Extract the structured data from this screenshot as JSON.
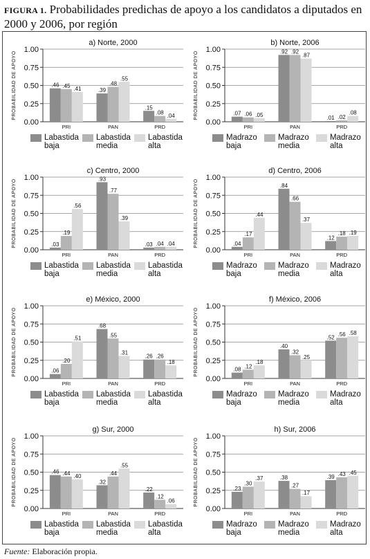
{
  "figure": {
    "label": "FIGURA 1.",
    "title": "Probabilidades predichas de apoyo a los candidatos a diputados en 2000 y 2006, por región",
    "source_label": "Fuente:",
    "source_text": " Elaboración propia."
  },
  "colors": {
    "low": "#8c8c8c",
    "mid": "#b4b4b4",
    "high": "#dadada",
    "axis": "#333333",
    "grid": "#888888"
  },
  "chart_data": [
    {
      "type": "bar",
      "title": "a) Norte, 2000",
      "ylabel": "PROBABILIDAD DE APOYO",
      "categories": [
        "PRI",
        "PAN",
        "PRD"
      ],
      "ylim": [
        0,
        1
      ],
      "yticks": [
        "0.00",
        "0.25",
        "0.50",
        "0.75",
        "1.00"
      ],
      "legend": [
        [
          "Labastida",
          "baja"
        ],
        [
          "Labastida",
          "media"
        ],
        [
          "Labastida",
          "alta"
        ]
      ],
      "series": [
        {
          "values": [
            0.46,
            0.39,
            0.15
          ],
          "labels": [
            ".46",
            ".39",
            ".15"
          ]
        },
        {
          "values": [
            0.45,
            0.48,
            0.08
          ],
          "labels": [
            ".45",
            ".48",
            ".08"
          ]
        },
        {
          "values": [
            0.41,
            0.55,
            0.04
          ],
          "labels": [
            ".41",
            ".55",
            ".04"
          ]
        }
      ]
    },
    {
      "type": "bar",
      "title": "b) Norte, 2006",
      "ylabel": "PROBABILIDAD DE APOYO",
      "categories": [
        "PRI",
        "PAN",
        "PRD"
      ],
      "ylim": [
        0,
        1
      ],
      "yticks": [
        "0.00",
        "0.25",
        "0.50",
        "0.75",
        "1.00"
      ],
      "legend": [
        [
          "Madrazo",
          "baja"
        ],
        [
          "Madrazo",
          "media"
        ],
        [
          "Madrazo",
          "alta"
        ]
      ],
      "series": [
        {
          "values": [
            0.07,
            0.92,
            0.01
          ],
          "labels": [
            ".07",
            ".92",
            ".01"
          ]
        },
        {
          "values": [
            0.06,
            0.92,
            0.02
          ],
          "labels": [
            ".06",
            ".92",
            ".02"
          ]
        },
        {
          "values": [
            0.05,
            0.87,
            0.08
          ],
          "labels": [
            ".05",
            ".87",
            ".08"
          ]
        }
      ]
    },
    {
      "type": "bar",
      "title": "c) Centro, 2000",
      "ylabel": "PROBABILIDAD DE APOYO",
      "categories": [
        "PRI",
        "PAN",
        "PRD"
      ],
      "ylim": [
        0,
        1
      ],
      "yticks": [
        "0.00",
        "0.25",
        "0.50",
        "0.75",
        "1.00"
      ],
      "legend": [
        [
          "Labastida",
          "baja"
        ],
        [
          "Labastida",
          "media"
        ],
        [
          "Labastida",
          "alta"
        ]
      ],
      "series": [
        {
          "values": [
            0.03,
            0.93,
            0.03
          ],
          "labels": [
            ".03",
            ".93",
            ".03"
          ]
        },
        {
          "values": [
            0.19,
            0.77,
            0.04
          ],
          "labels": [
            ".19",
            ".77",
            ".04"
          ]
        },
        {
          "values": [
            0.56,
            0.39,
            0.04
          ],
          "labels": [
            ".56",
            ".39",
            ".04"
          ]
        }
      ]
    },
    {
      "type": "bar",
      "title": "d) Centro, 2006",
      "ylabel": "PROBABILIDAD DE APOYO",
      "categories": [
        "PRI",
        "PAN",
        "PRD"
      ],
      "ylim": [
        0,
        1
      ],
      "yticks": [
        "0.00",
        "0.25",
        "0.50",
        "0.75",
        "1.00"
      ],
      "legend": [
        [
          "Madrazo",
          "baja"
        ],
        [
          "Madrazo",
          "media"
        ],
        [
          "Madrazo",
          "alta"
        ]
      ],
      "series": [
        {
          "values": [
            0.04,
            0.84,
            0.12
          ],
          "labels": [
            ".04",
            ".84",
            ".12"
          ]
        },
        {
          "values": [
            0.17,
            0.66,
            0.18
          ],
          "labels": [
            ".17",
            ".66",
            ".18"
          ]
        },
        {
          "values": [
            0.44,
            0.37,
            0.19
          ],
          "labels": [
            ".44",
            ".37",
            ".19"
          ]
        }
      ]
    },
    {
      "type": "bar",
      "title": "e) México, 2000",
      "ylabel": "PROBABILIDAD DE APOYO",
      "categories": [
        "PRI",
        "PAN",
        "PRD"
      ],
      "ylim": [
        0,
        1
      ],
      "yticks": [
        "0.00",
        "0.25",
        "0.50",
        "0.75",
        "1.00"
      ],
      "legend": [
        [
          "Labastida",
          "baja"
        ],
        [
          "Labastida",
          "media"
        ],
        [
          "Labastida",
          "alta"
        ]
      ],
      "series": [
        {
          "values": [
            0.06,
            0.68,
            0.26
          ],
          "labels": [
            ".06",
            ".68",
            ".26"
          ]
        },
        {
          "values": [
            0.2,
            0.55,
            0.26
          ],
          "labels": [
            ".20",
            ".55",
            ".26"
          ]
        },
        {
          "values": [
            0.51,
            0.31,
            0.18
          ],
          "labels": [
            ".51",
            ".31",
            ".18"
          ]
        }
      ]
    },
    {
      "type": "bar",
      "title": "f) México, 2006",
      "ylabel": "PROBABILIDAD DE APOYO",
      "categories": [
        "PRI",
        "PAN",
        "PRD"
      ],
      "ylim": [
        0,
        1
      ],
      "yticks": [
        "0.00",
        "0.25",
        "0.50",
        "0.75",
        "1.00"
      ],
      "legend": [
        [
          "Madrazo",
          "baja"
        ],
        [
          "Madrazo",
          "media"
        ],
        [
          "Madrazo",
          "alta"
        ]
      ],
      "series": [
        {
          "values": [
            0.08,
            0.4,
            0.52
          ],
          "labels": [
            ".08",
            ".40",
            ".52"
          ]
        },
        {
          "values": [
            0.12,
            0.32,
            0.56
          ],
          "labels": [
            ".12",
            ".32",
            ".56"
          ]
        },
        {
          "values": [
            0.18,
            0.25,
            0.58
          ],
          "labels": [
            ".18",
            ".25",
            ".58"
          ]
        }
      ]
    },
    {
      "type": "bar",
      "title": "g) Sur, 2000",
      "ylabel": "PROBABILIDAD DE APOYO",
      "categories": [
        "PRI",
        "PAN",
        "PRD"
      ],
      "ylim": [
        0,
        1
      ],
      "yticks": [
        "0.00",
        "0.25",
        "0.50",
        "0.75",
        "1.00"
      ],
      "legend": [
        [
          "Labastida",
          "baja"
        ],
        [
          "Labastida",
          "media"
        ],
        [
          "Labastida",
          "alta"
        ]
      ],
      "series": [
        {
          "values": [
            0.46,
            0.32,
            0.22
          ],
          "labels": [
            ".46",
            ".32",
            ".22"
          ]
        },
        {
          "values": [
            0.44,
            0.44,
            0.12
          ],
          "labels": [
            ".44",
            ".44",
            ".12"
          ]
        },
        {
          "values": [
            0.4,
            0.55,
            0.06
          ],
          "labels": [
            ".40",
            ".55",
            ".06"
          ]
        }
      ]
    },
    {
      "type": "bar",
      "title": "h) Sur, 2006",
      "ylabel": "PROBABILIDAD DE APOYO",
      "categories": [
        "PRI",
        "PAN",
        "PRD"
      ],
      "ylim": [
        0,
        1
      ],
      "yticks": [
        "0.00",
        "0.25",
        "0.50",
        "0.75",
        "1.00"
      ],
      "legend": [
        [
          "Madrazo",
          "baja"
        ],
        [
          "Madrazo",
          "media"
        ],
        [
          "Madrazo",
          "alta"
        ]
      ],
      "series": [
        {
          "values": [
            0.23,
            0.38,
            0.39
          ],
          "labels": [
            ".23",
            ".38",
            ".39"
          ]
        },
        {
          "values": [
            0.3,
            0.27,
            0.43
          ],
          "labels": [
            ".30",
            ".27",
            ".43"
          ]
        },
        {
          "values": [
            0.37,
            0.17,
            0.45
          ],
          "labels": [
            ".37",
            ".17",
            ".45"
          ]
        }
      ]
    }
  ]
}
